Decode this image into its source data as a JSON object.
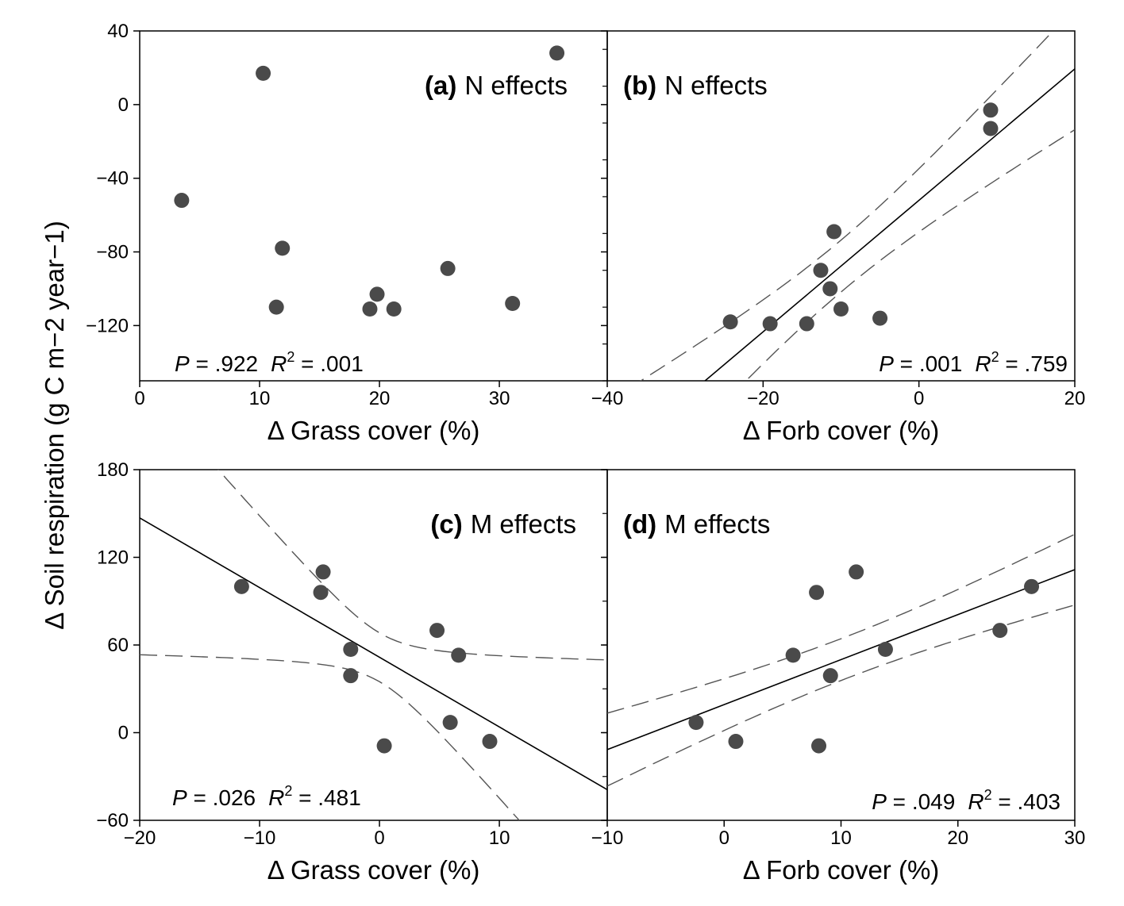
{
  "figure": {
    "ylabel": "Δ Soil respiration (g C m−2 year−1)"
  },
  "chart_data": [
    {
      "type": "scatter",
      "panel": "a",
      "title_letter": "(a)",
      "title_text": "N effects",
      "xlabel": "Δ Grass cover (%)",
      "xlim": [
        0,
        39
      ],
      "ylim": [
        -150,
        40
      ],
      "xticks": [
        0,
        10,
        20,
        30
      ],
      "yticks": [
        -120,
        -80,
        -40,
        0,
        40
      ],
      "show_y_tick_labels": true,
      "stats": {
        "p": ".922",
        "r2": ".001"
      },
      "points": [
        {
          "x": 3.5,
          "y": -52
        },
        {
          "x": 10.3,
          "y": 17
        },
        {
          "x": 11.9,
          "y": -78
        },
        {
          "x": 11.4,
          "y": -110
        },
        {
          "x": 19.2,
          "y": -111
        },
        {
          "x": 19.8,
          "y": -103
        },
        {
          "x": 21.2,
          "y": -111
        },
        {
          "x": 25.7,
          "y": -89
        },
        {
          "x": 31.1,
          "y": -108
        },
        {
          "x": 34.8,
          "y": 28
        }
      ],
      "fit": null
    },
    {
      "type": "scatter",
      "panel": "b",
      "title_letter": "(b)",
      "title_text": "N effects",
      "xlabel": "Δ Forb cover (%)",
      "xlim": [
        -40,
        20
      ],
      "ylim": [
        -150,
        40
      ],
      "xticks": [
        -40,
        -20,
        0,
        20
      ],
      "yticks": [
        -120,
        -80,
        -40,
        0,
        40
      ],
      "show_y_tick_labels": false,
      "stats": {
        "p": ".001",
        "r2": ".759"
      },
      "points": [
        {
          "x": -24.2,
          "y": -118
        },
        {
          "x": -19.1,
          "y": -119
        },
        {
          "x": -14.4,
          "y": -119
        },
        {
          "x": -12.6,
          "y": -90
        },
        {
          "x": -11.4,
          "y": -100
        },
        {
          "x": -10.9,
          "y": -69
        },
        {
          "x": -10.0,
          "y": -111
        },
        {
          "x": -5.0,
          "y": -116
        },
        {
          "x": 9.2,
          "y": -3
        },
        {
          "x": 9.2,
          "y": -13
        }
      ],
      "fit": {
        "slope": 3.57,
        "intercept": -52,
        "x0": -40,
        "x1": 20,
        "ci_mean_x": -9.86,
        "ci_a": 14.1,
        "ci_b": 1.0
      }
    },
    {
      "type": "scatter",
      "panel": "c",
      "title_letter": "(c)",
      "title_text": "M effects",
      "xlabel": "Δ Grass cover (%)",
      "xlim": [
        -20,
        19
      ],
      "ylim": [
        -60,
        180
      ],
      "xticks": [
        -20,
        -10,
        0,
        10
      ],
      "yticks": [
        -60,
        0,
        60,
        120,
        180
      ],
      "show_y_tick_labels": true,
      "stats": {
        "p": ".026",
        "r2": ".481"
      },
      "points": [
        {
          "x": -11.5,
          "y": 100
        },
        {
          "x": -4.7,
          "y": 110
        },
        {
          "x": -4.9,
          "y": 96
        },
        {
          "x": -2.4,
          "y": 57
        },
        {
          "x": -2.4,
          "y": 39
        },
        {
          "x": 0.4,
          "y": -9
        },
        {
          "x": 4.8,
          "y": 70
        },
        {
          "x": 6.6,
          "y": 53
        },
        {
          "x": 5.9,
          "y": 7
        },
        {
          "x": 9.2,
          "y": -6
        }
      ],
      "fit": {
        "slope": -4.77,
        "intercept": 51.6,
        "x0": -20,
        "x1": 19,
        "ci_mean_x": 0.04,
        "ci_a": 16.7,
        "ci_b": 4.6
      }
    },
    {
      "type": "scatter",
      "panel": "d",
      "title_letter": "(d)",
      "title_text": "M effects",
      "xlabel": "Δ Forb cover (%)",
      "xlim": [
        -10,
        30
      ],
      "ylim": [
        -60,
        180
      ],
      "xticks": [
        -10,
        0,
        10,
        20,
        30
      ],
      "yticks": [
        -60,
        0,
        60,
        120,
        180
      ],
      "show_y_tick_labels": false,
      "stats": {
        "p": ".049",
        "r2": ".403"
      },
      "points": [
        {
          "x": -2.4,
          "y": 7
        },
        {
          "x": 1.0,
          "y": -6
        },
        {
          "x": 5.9,
          "y": 53
        },
        {
          "x": 7.9,
          "y": 96
        },
        {
          "x": 8.1,
          "y": -9
        },
        {
          "x": 9.1,
          "y": 39
        },
        {
          "x": 11.3,
          "y": 110
        },
        {
          "x": 13.8,
          "y": 57
        },
        {
          "x": 23.6,
          "y": 70
        },
        {
          "x": 26.3,
          "y": 100
        }
      ],
      "fit": {
        "slope": 3.08,
        "intercept": 19.2,
        "x0": -10,
        "x1": 30,
        "ci_mean_x": 10.46,
        "ci_a": 14.3,
        "ci_b": 1.0
      }
    }
  ]
}
